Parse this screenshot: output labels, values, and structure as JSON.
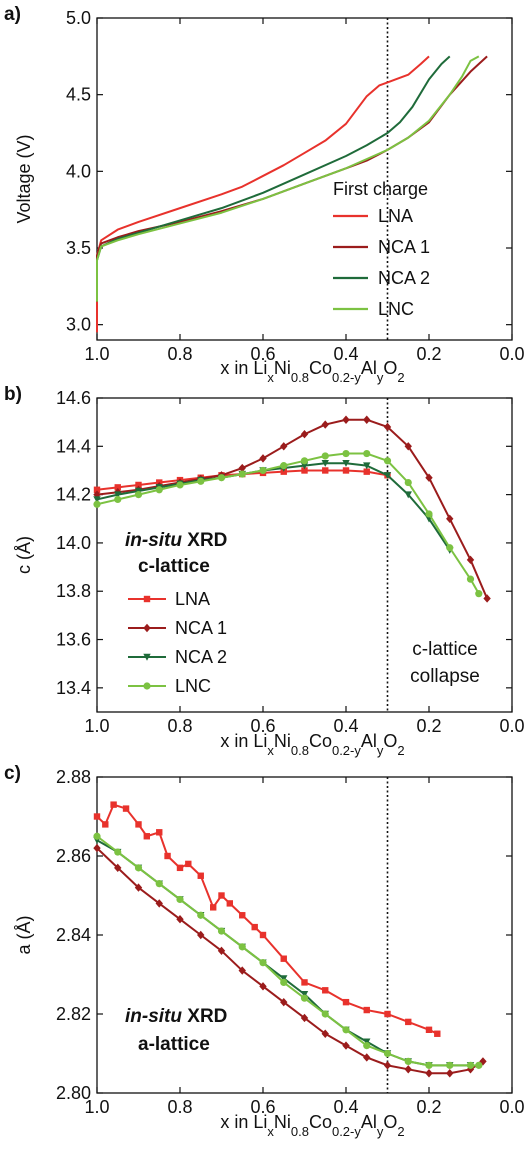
{
  "chart_data": [
    {
      "panel_label": "a)",
      "type": "line",
      "xlabel": "x in Li_xNi_0.8Co_0.2-yAl_yO_2",
      "ylabel": "Voltage (V)",
      "xlim": [
        1.0,
        0.0
      ],
      "ylim": [
        2.9,
        5.0
      ],
      "x_ticks": [
        "1.0",
        "0.8",
        "0.6",
        "0.4",
        "0.2",
        "0.0"
      ],
      "y_ticks": [
        "3.0",
        "3.5",
        "4.0",
        "4.5",
        "5.0"
      ],
      "vline_x": 0.3,
      "legend_title": "First charge",
      "legend_position": "lower-right",
      "series": [
        {
          "name": "LNA",
          "color": "#e8322c",
          "x": [
            1.0,
            1.0,
            0.99,
            0.95,
            0.9,
            0.8,
            0.7,
            0.65,
            0.6,
            0.55,
            0.5,
            0.45,
            0.4,
            0.35,
            0.32,
            0.3,
            0.28,
            0.25,
            0.22,
            0.2
          ],
          "y": [
            2.95,
            3.45,
            3.55,
            3.62,
            3.67,
            3.76,
            3.85,
            3.9,
            3.97,
            4.04,
            4.12,
            4.2,
            4.31,
            4.49,
            4.56,
            4.58,
            4.6,
            4.63,
            4.7,
            4.75
          ]
        },
        {
          "name": "NCA 1",
          "color": "#9b1c1c",
          "x": [
            1.0,
            1.0,
            0.99,
            0.95,
            0.9,
            0.8,
            0.7,
            0.6,
            0.5,
            0.4,
            0.35,
            0.3,
            0.25,
            0.2,
            0.15,
            0.1,
            0.06
          ],
          "y": [
            3.15,
            3.45,
            3.53,
            3.57,
            3.61,
            3.67,
            3.74,
            3.82,
            3.92,
            4.02,
            4.07,
            4.14,
            4.22,
            4.32,
            4.5,
            4.65,
            4.75
          ]
        },
        {
          "name": "NCA 2",
          "color": "#1f6b3a",
          "x": [
            1.0,
            1.0,
            0.99,
            0.95,
            0.9,
            0.8,
            0.7,
            0.6,
            0.5,
            0.4,
            0.35,
            0.3,
            0.27,
            0.24,
            0.2,
            0.17,
            0.15
          ],
          "y": [
            3.15,
            3.42,
            3.51,
            3.56,
            3.6,
            3.68,
            3.76,
            3.86,
            3.98,
            4.1,
            4.17,
            4.25,
            4.32,
            4.42,
            4.6,
            4.7,
            4.75
          ]
        },
        {
          "name": "LNC",
          "color": "#7cc242",
          "x": [
            1.0,
            1.0,
            0.99,
            0.95,
            0.9,
            0.8,
            0.7,
            0.6,
            0.5,
            0.4,
            0.3,
            0.25,
            0.2,
            0.15,
            0.12,
            0.1,
            0.08
          ],
          "y": [
            3.15,
            3.42,
            3.51,
            3.55,
            3.59,
            3.66,
            3.73,
            3.82,
            3.92,
            4.02,
            4.14,
            4.22,
            4.33,
            4.5,
            4.62,
            4.72,
            4.75
          ]
        }
      ]
    },
    {
      "panel_label": "b)",
      "type": "line",
      "xlabel": "x in Li_xNi_0.8Co_0.2-yAl_yO_2",
      "ylabel": "c (Å)",
      "xlim": [
        1.0,
        0.0
      ],
      "ylim": [
        13.3,
        14.6
      ],
      "x_ticks": [
        "1.0",
        "0.8",
        "0.6",
        "0.4",
        "0.2",
        "0.0"
      ],
      "y_ticks": [
        "13.4",
        "13.6",
        "13.8",
        "14.0",
        "14.2",
        "14.4",
        "14.6"
      ],
      "vline_x": 0.3,
      "annotation_italic": "in-situ",
      "annotation_rest": " XRD",
      "annotation_line2": "c-lattice",
      "collapse_line1": "c-lattice",
      "collapse_line2": "collapse",
      "legend_position": "lower-left",
      "series": [
        {
          "name": "LNA",
          "color": "#e8322c",
          "marker": "square",
          "x": [
            1.0,
            0.95,
            0.9,
            0.85,
            0.8,
            0.75,
            0.7,
            0.65,
            0.6,
            0.55,
            0.5,
            0.45,
            0.4,
            0.35,
            0.3
          ],
          "y": [
            14.22,
            14.23,
            14.24,
            14.25,
            14.26,
            14.27,
            14.28,
            14.285,
            14.29,
            14.295,
            14.3,
            14.3,
            14.3,
            14.295,
            14.28
          ]
        },
        {
          "name": "NCA 1",
          "color": "#9b1c1c",
          "marker": "diamond",
          "x": [
            1.0,
            0.95,
            0.9,
            0.85,
            0.8,
            0.75,
            0.7,
            0.65,
            0.6,
            0.55,
            0.5,
            0.45,
            0.4,
            0.35,
            0.3,
            0.25,
            0.2,
            0.15,
            0.1,
            0.06
          ],
          "y": [
            14.2,
            14.21,
            14.22,
            14.235,
            14.25,
            14.265,
            14.28,
            14.31,
            14.35,
            14.4,
            14.45,
            14.49,
            14.51,
            14.51,
            14.48,
            14.4,
            14.27,
            14.1,
            13.93,
            13.77
          ]
        },
        {
          "name": "NCA 2",
          "color": "#1f6b3a",
          "marker": "triangle-down",
          "x": [
            1.0,
            0.95,
            0.9,
            0.85,
            0.8,
            0.75,
            0.7,
            0.65,
            0.6,
            0.55,
            0.5,
            0.45,
            0.4,
            0.35,
            0.3,
            0.25,
            0.2,
            0.15
          ],
          "y": [
            14.18,
            14.2,
            14.215,
            14.23,
            14.245,
            14.26,
            14.27,
            14.285,
            14.3,
            14.31,
            14.32,
            14.33,
            14.33,
            14.32,
            14.28,
            14.2,
            14.1,
            13.97
          ]
        },
        {
          "name": "LNC",
          "color": "#7cc242",
          "marker": "circle",
          "x": [
            1.0,
            0.95,
            0.9,
            0.85,
            0.8,
            0.75,
            0.7,
            0.65,
            0.6,
            0.55,
            0.5,
            0.45,
            0.4,
            0.35,
            0.3,
            0.25,
            0.2,
            0.15,
            0.1,
            0.08
          ],
          "y": [
            14.16,
            14.18,
            14.2,
            14.22,
            14.24,
            14.255,
            14.27,
            14.285,
            14.3,
            14.32,
            14.34,
            14.36,
            14.37,
            14.37,
            14.34,
            14.25,
            14.12,
            13.98,
            13.85,
            13.79
          ]
        }
      ]
    },
    {
      "panel_label": "c)",
      "type": "line",
      "xlabel": "x in Li_xNi_0.8Co_0.2-yAl_yO_2",
      "ylabel": "a (Å)",
      "xlim": [
        1.0,
        0.0
      ],
      "ylim": [
        2.8,
        2.88
      ],
      "x_ticks": [
        "1.0",
        "0.8",
        "0.6",
        "0.4",
        "0.2",
        "0.0"
      ],
      "y_ticks": [
        "2.80",
        "2.82",
        "2.84",
        "2.86",
        "2.88"
      ],
      "vline_x": 0.3,
      "annotation_italic": "in-situ",
      "annotation_rest": " XRD",
      "annotation_line2": "a-lattice",
      "series": [
        {
          "name": "LNA",
          "color": "#e8322c",
          "marker": "square",
          "x": [
            1.0,
            0.98,
            0.96,
            0.93,
            0.9,
            0.88,
            0.85,
            0.83,
            0.8,
            0.78,
            0.75,
            0.72,
            0.7,
            0.68,
            0.65,
            0.62,
            0.6,
            0.55,
            0.5,
            0.45,
            0.4,
            0.35,
            0.3,
            0.25,
            0.2,
            0.18
          ],
          "y": [
            2.87,
            2.868,
            2.873,
            2.872,
            2.868,
            2.865,
            2.866,
            2.86,
            2.857,
            2.858,
            2.855,
            2.847,
            2.85,
            2.848,
            2.845,
            2.842,
            2.84,
            2.834,
            2.828,
            2.826,
            2.823,
            2.821,
            2.82,
            2.818,
            2.816,
            2.815
          ]
        },
        {
          "name": "NCA 1",
          "color": "#9b1c1c",
          "marker": "diamond",
          "x": [
            1.0,
            0.95,
            0.9,
            0.85,
            0.8,
            0.75,
            0.7,
            0.65,
            0.6,
            0.55,
            0.5,
            0.45,
            0.4,
            0.35,
            0.3,
            0.25,
            0.2,
            0.15,
            0.1,
            0.07
          ],
          "y": [
            2.862,
            2.857,
            2.852,
            2.848,
            2.844,
            2.84,
            2.836,
            2.831,
            2.827,
            2.823,
            2.819,
            2.815,
            2.812,
            2.809,
            2.807,
            2.806,
            2.805,
            2.805,
            2.806,
            2.808
          ]
        },
        {
          "name": "NCA 2",
          "color": "#1f6b3a",
          "marker": "triangle-down",
          "x": [
            1.0,
            0.95,
            0.9,
            0.85,
            0.8,
            0.75,
            0.7,
            0.65,
            0.6,
            0.55,
            0.5,
            0.45,
            0.4,
            0.35,
            0.3,
            0.25,
            0.2,
            0.15,
            0.1
          ],
          "y": [
            2.864,
            2.861,
            2.857,
            2.853,
            2.849,
            2.845,
            2.841,
            2.837,
            2.833,
            2.829,
            2.825,
            2.82,
            2.816,
            2.813,
            2.81,
            2.808,
            2.807,
            2.807,
            2.807
          ]
        },
        {
          "name": "LNC",
          "color": "#7cc242",
          "marker": "circle",
          "x": [
            1.0,
            0.95,
            0.9,
            0.85,
            0.8,
            0.75,
            0.7,
            0.65,
            0.6,
            0.55,
            0.5,
            0.45,
            0.4,
            0.35,
            0.3,
            0.25,
            0.2,
            0.15,
            0.1,
            0.08
          ],
          "y": [
            2.865,
            2.861,
            2.857,
            2.853,
            2.849,
            2.845,
            2.841,
            2.837,
            2.833,
            2.828,
            2.824,
            2.82,
            2.816,
            2.812,
            2.81,
            2.808,
            2.807,
            2.807,
            2.807,
            2.807
          ]
        }
      ]
    }
  ]
}
